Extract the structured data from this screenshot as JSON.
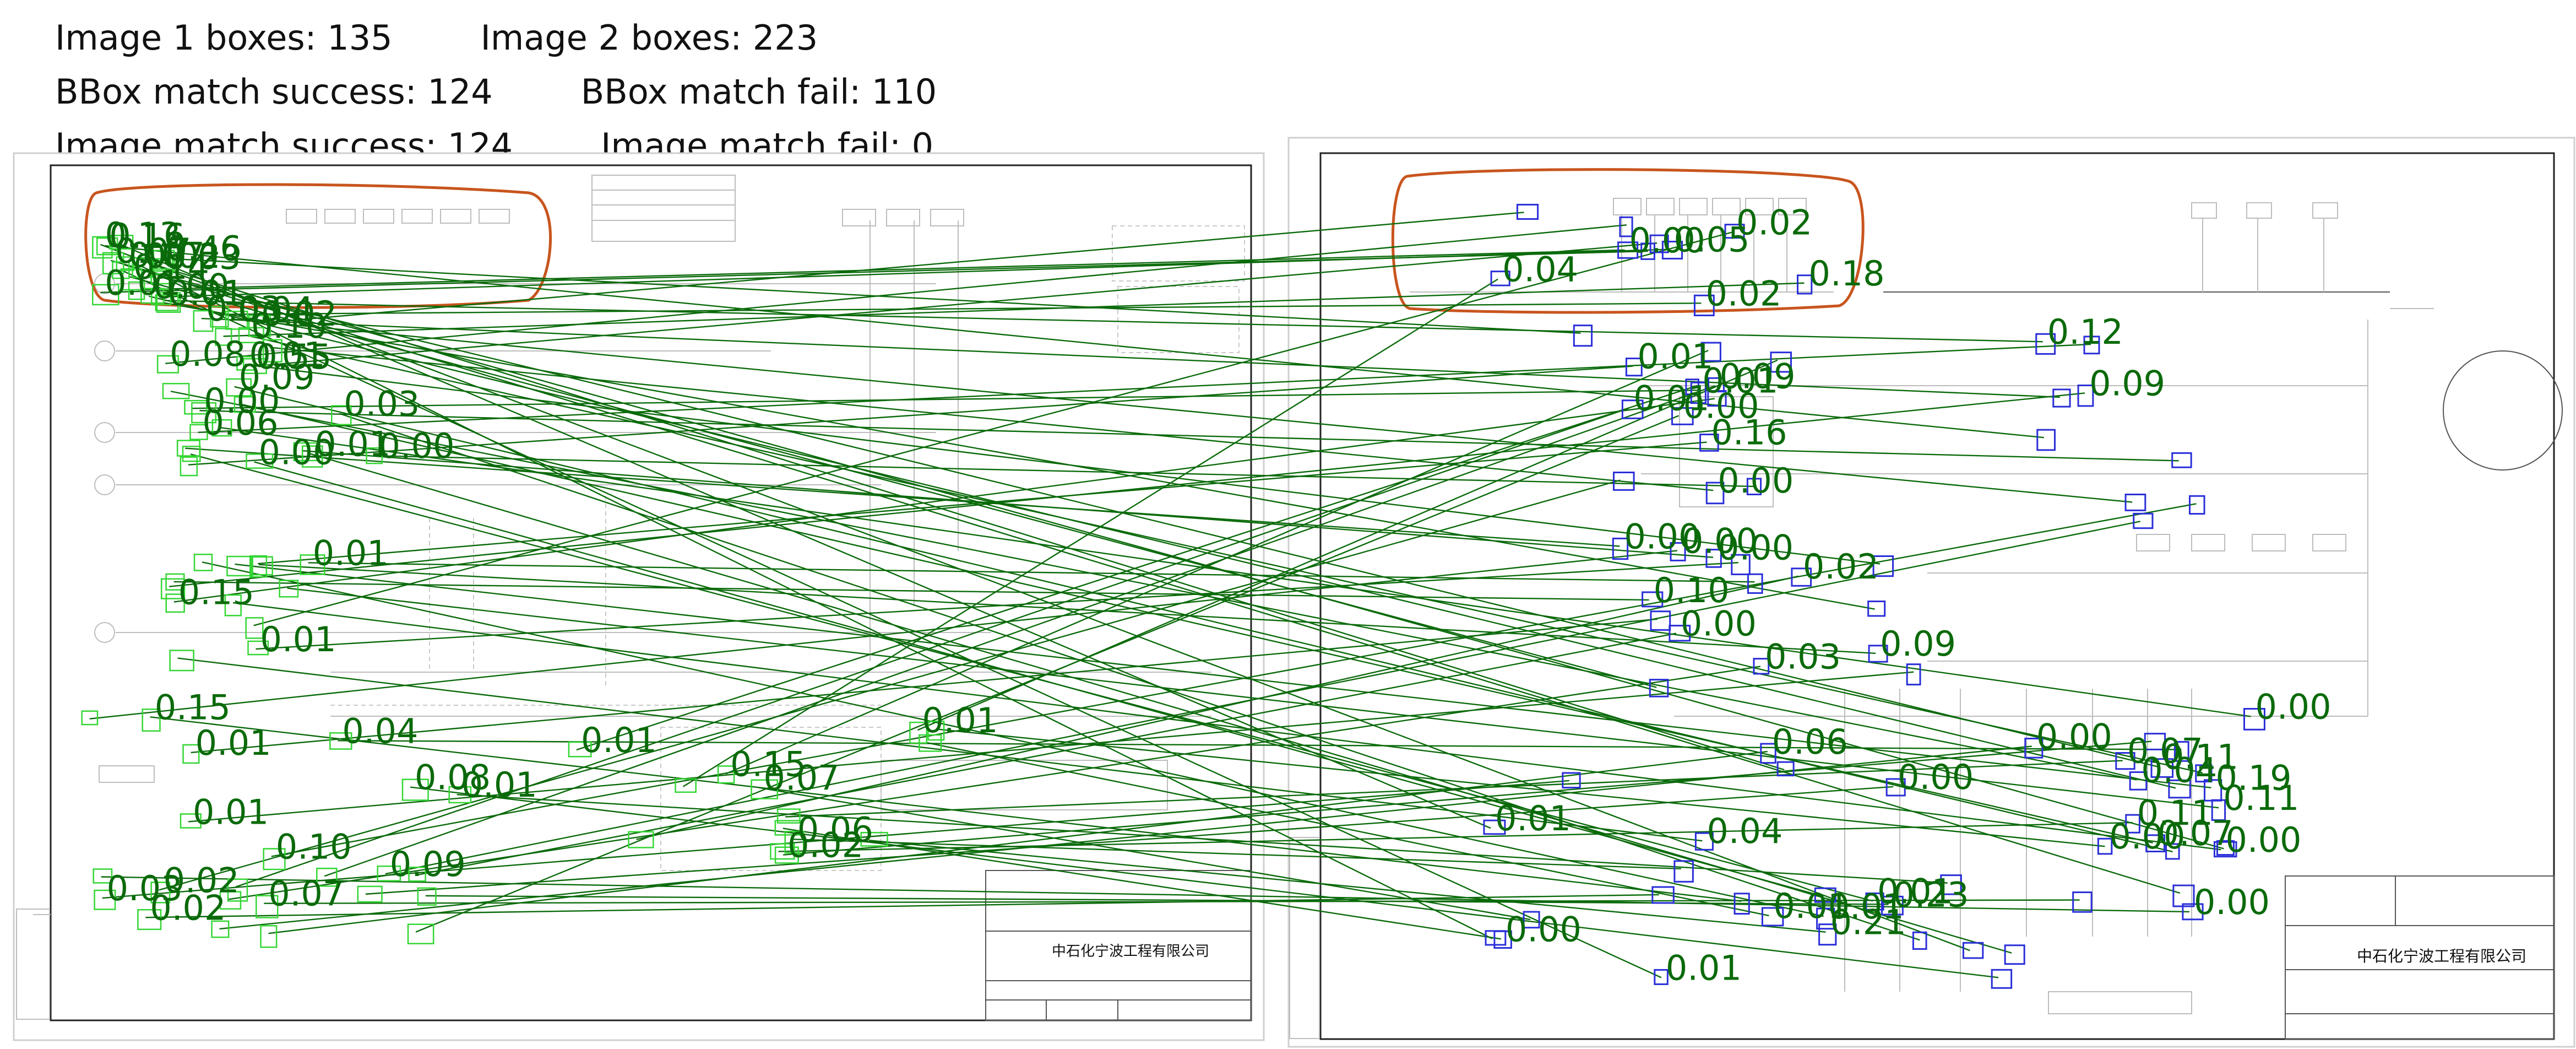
{
  "stats": {
    "image1_boxes": "Image 1 boxes: 135",
    "image2_boxes": "Image 2 boxes: 223",
    "bbox_success": "BBox match success: 124",
    "bbox_fail": "BBox match fail: 110",
    "image_success": "Image match success: 124",
    "image_fail": "Image match fail: 0"
  },
  "colors": {
    "match_line": "#0a6a0a",
    "image1_box": "#33d633",
    "image2_box": "#2a2fd8",
    "highlight_loop": "#c8551e"
  },
  "scores": [
    "0.16",
    "0.55",
    "0.04",
    "0.04",
    "0.07",
    "0.15",
    "0.03",
    "0.08",
    "0.09",
    "0.14",
    "0.12",
    "0.02",
    "0.10",
    "0.08",
    "0.11",
    "0.16",
    "0.19",
    "0.07",
    "0.04",
    "0.09",
    "0.18",
    "0.10",
    "0.09",
    "0.03",
    "0.05",
    "0.09",
    "0.11",
    "0.07",
    "0.09",
    "0.07",
    "0.01",
    "0.15",
    "0.04",
    "0.07",
    "0.07",
    "0.00",
    "0.01",
    "0.03",
    "0.00",
    "0.01",
    "0.00",
    "0.02",
    "0.00",
    "0.03",
    "0.00",
    "0.01",
    "0.00",
    "0.01",
    "0.00",
    "0.02",
    "0.00",
    "0.01",
    "0.00",
    "0.06",
    "0.01",
    "0.00",
    "0.02",
    "0.01",
    "0.00",
    "0.01",
    "0.02",
    "0.04",
    "0.01",
    "0.00",
    "0.01",
    "0.06",
    "0.01",
    "0.00",
    "0.02",
    "0.01",
    "0.00",
    "0.01",
    "0.00",
    "0.01",
    "0.00",
    "0.02",
    "0.01",
    "0.03",
    "0.00",
    "0.01",
    "0.23",
    "0.46",
    "0.21",
    "0.15",
    "0.01",
    "0.10",
    "0.06",
    "0.13",
    "0.11",
    "0.01",
    "0.00",
    "0.02"
  ],
  "drawing_text": {
    "company_left": "中石化宁波工程有限公司",
    "company_right": "中石化宁波工程有限公司"
  }
}
